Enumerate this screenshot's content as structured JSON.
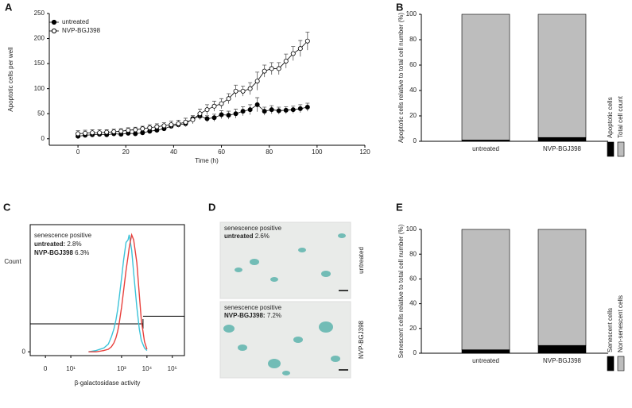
{
  "chart_data": [
    {
      "type": "line",
      "panel": "A",
      "xlabel": "Time (h)",
      "ylabel": "Apoptotic cells per well",
      "x": [
        0,
        3,
        6,
        9,
        12,
        15,
        18,
        21,
        24,
        27,
        30,
        33,
        36,
        39,
        42,
        45,
        48,
        51,
        54,
        57,
        60,
        63,
        66,
        69,
        72,
        75,
        78,
        81,
        84,
        87,
        90,
        93,
        96
      ],
      "series": [
        {
          "name": "untreated",
          "color": "#000000",
          "marker": "filled",
          "values": [
            5,
            7,
            8,
            9,
            8,
            10,
            9,
            11,
            10,
            12,
            15,
            17,
            20,
            25,
            28,
            30,
            40,
            45,
            40,
            42,
            48,
            47,
            50,
            55,
            58,
            68,
            55,
            58,
            56,
            57,
            58,
            60,
            63
          ],
          "errors": [
            3,
            3,
            3,
            3,
            3,
            3,
            3,
            3,
            3,
            3,
            4,
            4,
            4,
            5,
            5,
            6,
            6,
            7,
            6,
            7,
            8,
            8,
            9,
            9,
            10,
            14,
            8,
            8,
            7,
            7,
            7,
            8,
            8
          ]
        },
        {
          "name": "NVP-BGJ398",
          "color": "#000000",
          "marker": "open",
          "values": [
            10,
            11,
            12,
            12,
            13,
            14,
            15,
            17,
            18,
            20,
            22,
            24,
            26,
            28,
            30,
            33,
            38,
            50,
            58,
            65,
            70,
            80,
            95,
            95,
            100,
            115,
            135,
            140,
            140,
            155,
            170,
            180,
            195
          ],
          "errors": [
            6,
            6,
            6,
            6,
            5,
            5,
            5,
            5,
            5,
            5,
            6,
            6,
            6,
            7,
            7,
            8,
            8,
            9,
            10,
            10,
            10,
            10,
            12,
            10,
            12,
            18,
            12,
            12,
            12,
            14,
            14,
            16,
            18
          ]
        }
      ],
      "xlim": [
        -12,
        120
      ],
      "xticks": [
        0,
        20,
        40,
        60,
        80,
        100,
        120
      ],
      "ylim": [
        -13,
        250
      ],
      "yticks": [
        0,
        50,
        100,
        150,
        200,
        250
      ],
      "legend": "upper left"
    },
    {
      "type": "bar",
      "panel": "B",
      "ylabel": "Apoptotic cells relative to total cell number (%)",
      "categories": [
        "untreated",
        "NVP-BGJ398"
      ],
      "series": [
        {
          "name": "Apoptotic cells",
          "color": "#000000",
          "values": [
            1,
            3
          ],
          "errors": [
            0.4,
            0.8
          ]
        },
        {
          "name": "Total cell count",
          "color": "#bdbdbd",
          "values": [
            99,
            97
          ]
        }
      ],
      "stacked": true,
      "ylim": [
        0,
        100
      ],
      "yticks": [
        0,
        20,
        40,
        60,
        80,
        100
      ],
      "legend": "right"
    },
    {
      "type": "line",
      "panel": "C",
      "xlabel": "β-galactosidase activity",
      "ylabel": "Count",
      "xscale": "symlog",
      "x": [
        50,
        100,
        200,
        300,
        400,
        500,
        600,
        700,
        800,
        1000,
        1200,
        1500,
        1800,
        2000,
        2500,
        3000,
        4000,
        5000,
        6000,
        8000,
        10000
      ],
      "series": [
        {
          "name": "untreated",
          "color": "#3cc3d9",
          "values": [
            0,
            1,
            3,
            6,
            12,
            18,
            25,
            33,
            42,
            58,
            72,
            86,
            88,
            92,
            80,
            62,
            35,
            18,
            9,
            3,
            1
          ]
        },
        {
          "name": "NVP-BGJ398",
          "color": "#e8403c",
          "values": [
            0,
            0,
            1,
            2,
            4,
            7,
            11,
            16,
            22,
            35,
            48,
            64,
            75,
            82,
            92,
            88,
            70,
            45,
            25,
            8,
            2
          ]
        }
      ],
      "xlim": [
        -6,
        300000
      ],
      "xticks": [
        0,
        {
          "value": 10,
          "label": "10¹"
        },
        {
          "value": 1000,
          "label": "10³"
        },
        {
          "value": 10000,
          "label": "10⁴"
        },
        {
          "value": 100000,
          "label": "10⁵"
        }
      ],
      "ylim": [
        -3,
        100
      ],
      "yticks": [
        0
      ],
      "annotations": [
        {
          "text": "senescence positive"
        },
        {
          "bold": "untreated:",
          "text": "2.8%"
        },
        {
          "bold": "NVP-BGJ398",
          "text": "6.3%"
        }
      ]
    },
    {
      "type": "bar",
      "panel": "E",
      "ylabel": "Senescent cells relative to total cell number (%)",
      "categories": [
        "untreated",
        "NVP-BGJ398"
      ],
      "series": [
        {
          "name": "Senescent cells",
          "color": "#000000",
          "values": [
            2.8,
            6.3
          ],
          "errors": [
            0.8,
            1.5
          ]
        },
        {
          "name": "Non-senescent cells",
          "color": "#bdbdbd",
          "values": [
            97.2,
            93.7
          ]
        }
      ],
      "stacked": true,
      "ylim": [
        0,
        100
      ],
      "yticks": [
        0,
        20,
        40,
        60,
        80,
        100
      ],
      "legend": "right"
    }
  ],
  "panel_d": {
    "label": "D",
    "images": [
      {
        "caption": "senescence positive",
        "bold": "untreated",
        "text": "2.6%",
        "side_label": "untreated"
      },
      {
        "caption": "senescence positive",
        "bold": "NVP-BGJ398:",
        "text": "7.2%",
        "side_label": "NVP-BGJ398"
      }
    ]
  }
}
